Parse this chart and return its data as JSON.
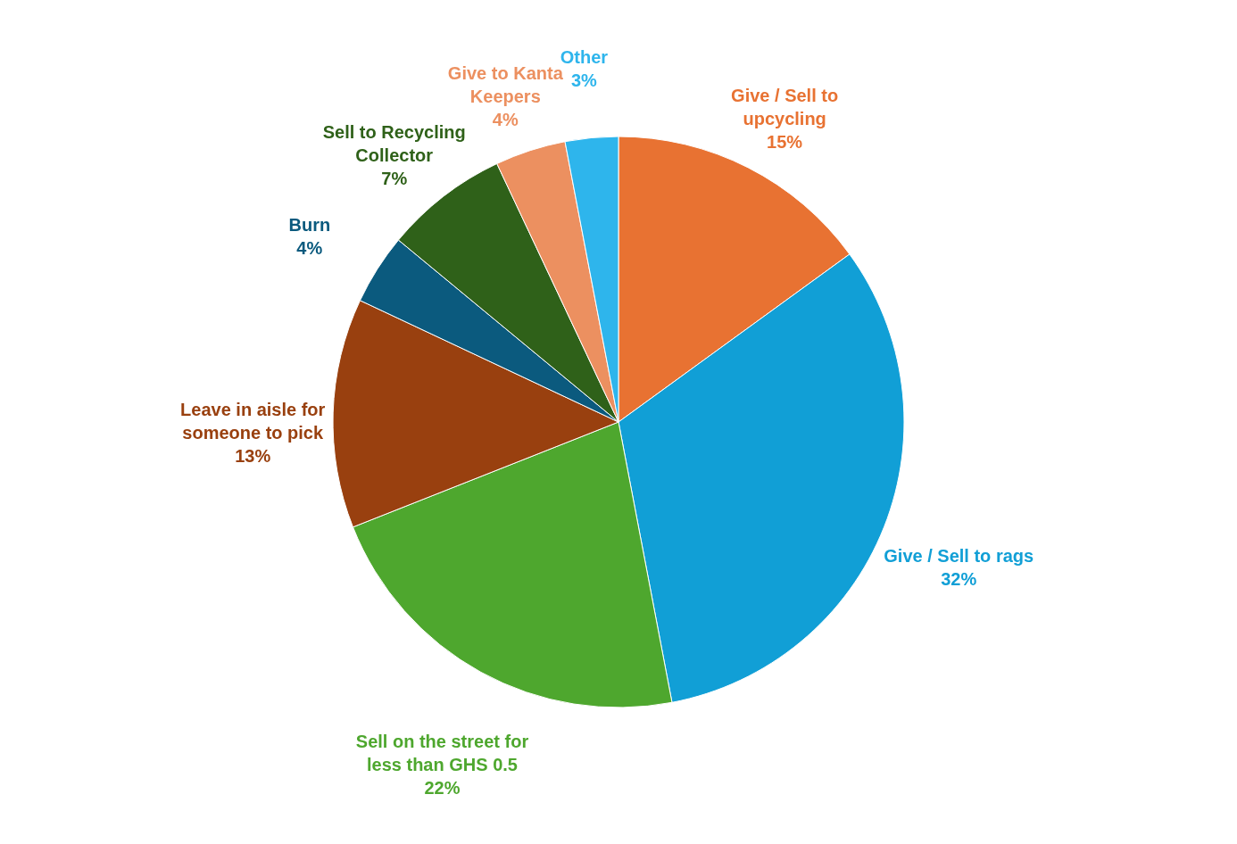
{
  "chart_data": {
    "type": "pie",
    "categories": [
      "Give / Sell to upcycling",
      "Give / Sell  to rags",
      "Sell on the street for less than GHS 0.5",
      "Leave in aisle for someone to pick",
      "Burn",
      "Sell to Recycling Collector",
      "Give to Kanta Keepers",
      "Other"
    ],
    "values": [
      15,
      32,
      22,
      13,
      4,
      7,
      4,
      3
    ],
    "value_labels": [
      "15%",
      "32%",
      "22%",
      "13%",
      "4%",
      "7%",
      "4%",
      "3%"
    ],
    "colors": [
      "#e87232",
      "#119fd6",
      "#4ea72e",
      "#99400f",
      "#0b5a7e",
      "#2f6119",
      "#ec9060",
      "#2eb5ec"
    ]
  }
}
